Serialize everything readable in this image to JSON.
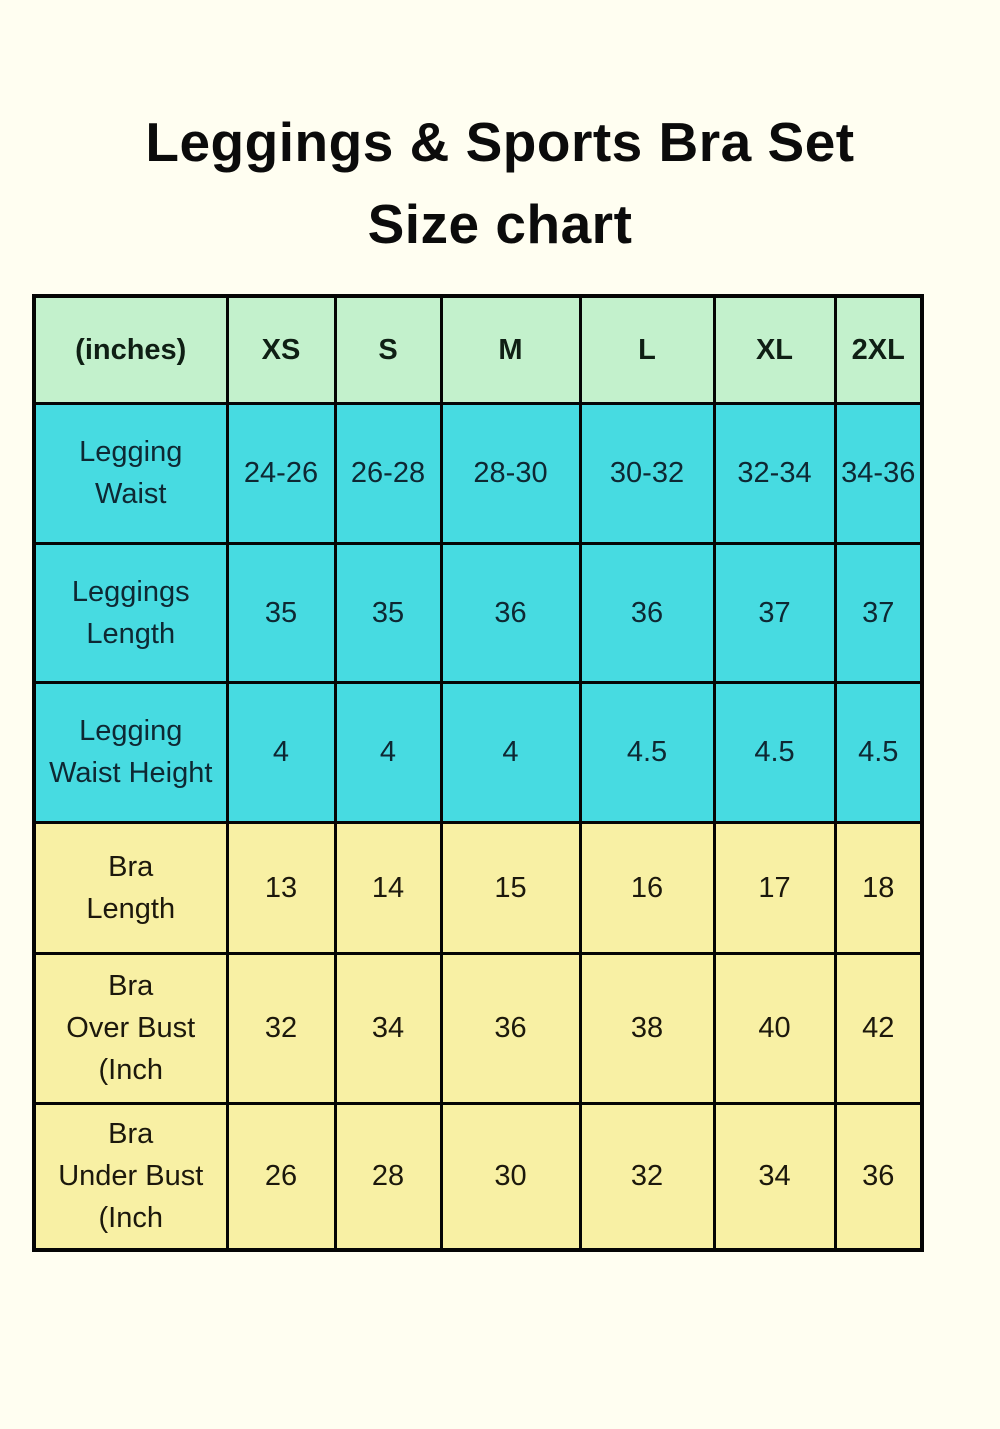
{
  "title": {
    "line1": "Leggings & Sports Bra Set",
    "line2": "Size chart"
  },
  "colors": {
    "page_background": "#FFFEF1",
    "header_row": "#C3F1CC",
    "leggings_rows": "#47DBE1",
    "bra_rows": "#F8F0A4",
    "border": "#050505"
  },
  "chart_data": {
    "type": "table",
    "title": "Leggings & Sports Bra Set Size chart",
    "units_label": "(inches)",
    "columns": [
      "(inches)",
      "XS",
      "S",
      "M",
      "L",
      "XL",
      "2XL"
    ],
    "rows": [
      {
        "label": "Legging\nWaist",
        "group": "leggings",
        "values": [
          "24-26",
          "26-28",
          "28-30",
          "30-32",
          "32-34",
          "34-36"
        ]
      },
      {
        "label": "Leggings\nLength",
        "group": "leggings",
        "values": [
          "35",
          "35",
          "36",
          "36",
          "37",
          "37"
        ]
      },
      {
        "label": "Legging\nWaist Height",
        "group": "leggings",
        "values": [
          "4",
          "4",
          "4",
          "4.5",
          "4.5",
          "4.5"
        ]
      },
      {
        "label": "Bra\nLength",
        "group": "bra",
        "values": [
          "13",
          "14",
          "15",
          "16",
          "17",
          "18"
        ]
      },
      {
        "label": "Bra\nOver Bust\n(Inch",
        "group": "bra",
        "values": [
          "32",
          "34",
          "36",
          "38",
          "40",
          "42"
        ]
      },
      {
        "label": "Bra\nUnder Bust\n(Inch",
        "group": "bra",
        "values": [
          "26",
          "28",
          "30",
          "32",
          "34",
          "36"
        ]
      }
    ]
  }
}
